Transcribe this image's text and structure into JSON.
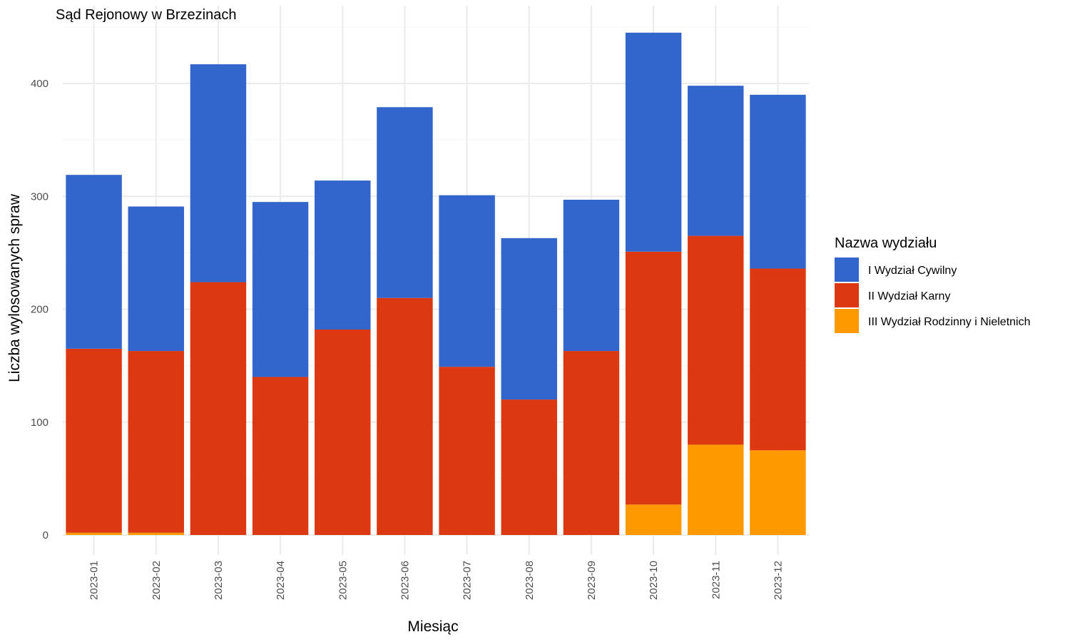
{
  "chart_data": {
    "type": "bar",
    "stacked": true,
    "title": "Sąd Rejonowy w Brzezinach",
    "xlabel": "Miesiąc",
    "ylabel": "Liczba wylosowanych spraw",
    "ylim": [
      0,
      450
    ],
    "yticks": [
      0,
      100,
      200,
      300,
      400
    ],
    "grid": true,
    "legend_title": "Nazwa wydziału",
    "legend_position": "right",
    "categories": [
      "2023-01",
      "2023-02",
      "2023-03",
      "2023-04",
      "2023-05",
      "2023-06",
      "2023-07",
      "2023-08",
      "2023-09",
      "2023-10",
      "2023-11",
      "2023-12"
    ],
    "series": [
      {
        "name": "I Wydział Cywilny",
        "color": "#3366cc",
        "values": [
          154,
          128,
          193,
          155,
          132,
          169,
          152,
          143,
          134,
          194,
          133,
          154
        ]
      },
      {
        "name": "II Wydział Karny",
        "color": "#dc3912",
        "values": [
          163,
          161,
          224,
          140,
          182,
          210,
          149,
          120,
          163,
          224,
          185,
          161
        ]
      },
      {
        "name": "III Wydział Rodzinny i Nieletnich",
        "color": "#ff9900",
        "values": [
          2,
          2,
          0,
          0,
          0,
          0,
          0,
          0,
          0,
          27,
          80,
          75
        ]
      }
    ]
  }
}
